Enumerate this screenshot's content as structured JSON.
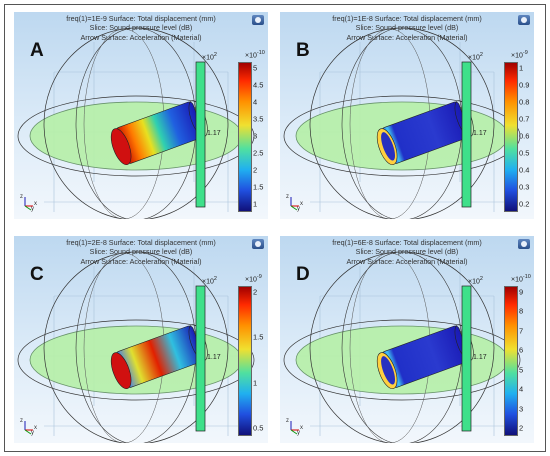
{
  "panels": [
    {
      "letter": "A",
      "title_lines": [
        "freq(1)=1E-9   Surface: Total displacement (mm)",
        "Slice: Sound pressure level (dB)",
        "Arrow Surface: Acceleration (Material)"
      ],
      "colorbar_multiplier": "×10",
      "colorbar_exponent": "-10",
      "colorbar_ticks": [
        "5",
        "4.5",
        "4",
        "3.5",
        "3",
        "2.5",
        "2",
        "1.5",
        "1"
      ],
      "slice_multiplier": "×10",
      "slice_exponent": "2",
      "slice_value": "1.17",
      "cylinder_pattern": "red-left"
    },
    {
      "letter": "B",
      "title_lines": [
        "freq(1)=1E-8   Surface: Total displacement (mm)",
        "Slice: Sound pressure level (dB)",
        "Arrow Surface: Acceleration (Material)"
      ],
      "colorbar_multiplier": "×10",
      "colorbar_exponent": "-9",
      "colorbar_ticks": [
        "1",
        "0.9",
        "0.8",
        "0.7",
        "0.6",
        "0.5",
        "0.4",
        "0.3",
        "0.2"
      ],
      "slice_multiplier": "×10",
      "slice_exponent": "2",
      "slice_value": "1.17",
      "cylinder_pattern": "blue-rim"
    },
    {
      "letter": "C",
      "title_lines": [
        "freq(1)=2E-8   Surface: Total displacement (mm)",
        "Slice: Sound pressure level (dB)",
        "Arrow Surface: Acceleration (Material)"
      ],
      "colorbar_multiplier": "×10",
      "colorbar_exponent": "-9",
      "colorbar_ticks": [
        "2",
        "1.5",
        "1",
        "0.5"
      ],
      "slice_multiplier": "×10",
      "slice_exponent": "2",
      "slice_value": "1.17",
      "cylinder_pattern": "red-middle"
    },
    {
      "letter": "D",
      "title_lines": [
        "freq(1)=6E-8   Surface: Total displacement (mm)",
        "Slice: Sound pressure level (dB)",
        "Arrow Surface: Acceleration (Material)"
      ],
      "colorbar_multiplier": "×10",
      "colorbar_exponent": "-10",
      "colorbar_ticks": [
        "9",
        "8",
        "7",
        "6",
        "5",
        "4",
        "3",
        "2"
      ],
      "slice_multiplier": "×10",
      "slice_exponent": "2",
      "slice_value": "1.17",
      "cylinder_pattern": "blue-rim"
    }
  ],
  "axis_labels": {
    "x": "x",
    "y": "y",
    "z": "z"
  },
  "colors": {
    "plane_fill": "#b6f0a8",
    "slice_bar": "#3ee08a",
    "accent_red": "#d40000",
    "accent_blue": "#1a1ab5"
  }
}
